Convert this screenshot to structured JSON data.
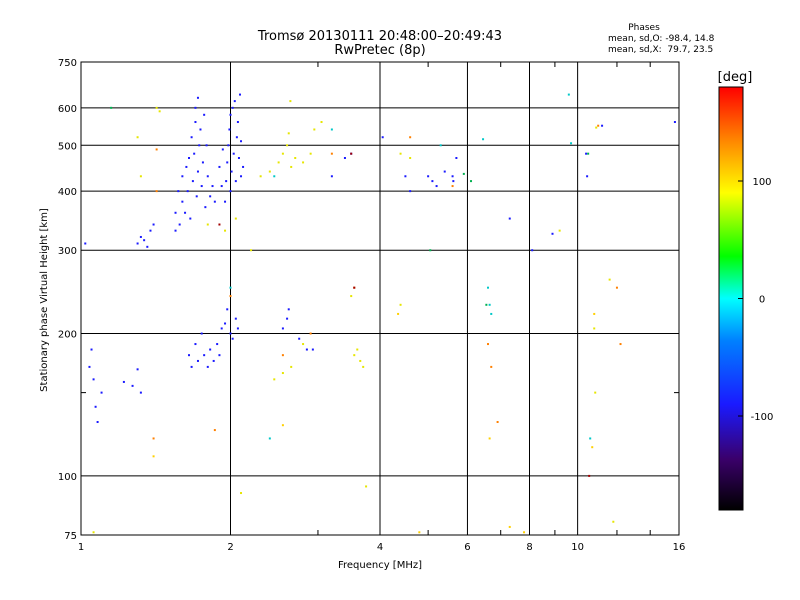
{
  "chart_data": {
    "type": "scatter",
    "title": "Tromsø 20130111 20:48:00–20:49:43",
    "subtitle": "RwPretec (8p)",
    "stats_header": "Phases",
    "stats_lines": [
      "mean, sd,O: -98.4, 14.8",
      "mean, sd,X:  79.7, 23.5"
    ],
    "xlabel": "Frequency [MHz]",
    "ylabel": "Stationary phase Virtual Height [km]",
    "x_scale": "log",
    "y_scale": "log",
    "xlim": [
      1,
      16
    ],
    "ylim": [
      75,
      750
    ],
    "x_ticks": [
      1,
      2,
      4,
      6,
      8,
      10,
      16
    ],
    "x_tick_labels": [
      "1",
      "2",
      "4",
      "6",
      "8",
      "10",
      "16"
    ],
    "x_minor_ticks": [
      3,
      5,
      7,
      9,
      12,
      14
    ],
    "y_ticks": [
      75,
      100,
      200,
      300,
      400,
      500,
      600,
      750
    ],
    "y_tick_labels": [
      "75",
      "100",
      "200",
      "300",
      "400",
      "500",
      "600",
      "750"
    ],
    "y_minor_ticks": [
      150
    ],
    "grid": true,
    "colorbar": {
      "label": "[deg]",
      "range": [
        -180,
        180
      ],
      "ticks": [
        100,
        0,
        -100
      ],
      "tick_labels": [
        "100",
        "0",
        "-100"
      ]
    },
    "series": [
      {
        "points": [
          [
            1.55,
            330
          ],
          [
            1.55,
            360
          ],
          [
            1.57,
            400
          ],
          [
            1.58,
            340
          ],
          [
            1.6,
            380
          ],
          [
            1.6,
            430
          ],
          [
            1.62,
            360
          ],
          [
            1.63,
            450
          ],
          [
            1.64,
            400
          ],
          [
            1.65,
            470
          ],
          [
            1.66,
            350
          ],
          [
            1.67,
            520
          ],
          [
            1.68,
            420
          ],
          [
            1.69,
            480
          ],
          [
            1.7,
            560
          ],
          [
            1.7,
            600
          ],
          [
            1.71,
            390
          ],
          [
            1.72,
            440
          ],
          [
            1.72,
            630
          ],
          [
            1.73,
            500
          ],
          [
            1.74,
            540
          ],
          [
            1.75,
            410
          ],
          [
            1.76,
            460
          ],
          [
            1.77,
            580
          ],
          [
            1.78,
            370
          ],
          [
            1.79,
            500
          ],
          [
            1.8,
            430
          ],
          [
            1.82,
            390
          ],
          [
            1.84,
            410
          ],
          [
            1.86,
            380
          ],
          [
            1.95,
            380
          ],
          [
            1.96,
            420
          ],
          [
            1.97,
            460
          ],
          [
            1.98,
            500
          ],
          [
            1.99,
            540
          ],
          [
            2.0,
            400
          ],
          [
            2.0,
            580
          ],
          [
            2.01,
            440
          ],
          [
            2.02,
            600
          ],
          [
            2.03,
            480
          ],
          [
            2.04,
            620
          ],
          [
            2.05,
            420
          ],
          [
            2.06,
            520
          ],
          [
            2.07,
            560
          ],
          [
            2.08,
            470
          ],
          [
            2.09,
            640
          ],
          [
            2.1,
            430
          ],
          [
            2.1,
            510
          ],
          [
            2.12,
            450
          ],
          [
            1.93,
            490
          ],
          [
            1.92,
            410
          ],
          [
            1.9,
            450
          ],
          [
            1.65,
            180
          ],
          [
            1.67,
            170
          ],
          [
            1.7,
            190
          ],
          [
            1.72,
            175
          ],
          [
            1.75,
            200
          ],
          [
            1.77,
            180
          ],
          [
            1.8,
            170
          ],
          [
            1.82,
            185
          ],
          [
            1.85,
            175
          ],
          [
            1.88,
            190
          ],
          [
            1.9,
            180
          ],
          [
            1.92,
            205
          ],
          [
            1.95,
            210
          ],
          [
            1.97,
            225
          ],
          [
            2.0,
            200
          ],
          [
            2.02,
            195
          ],
          [
            2.05,
            215
          ],
          [
            2.07,
            205
          ],
          [
            1.02,
            310
          ],
          [
            1.05,
            185
          ],
          [
            1.06,
            160
          ],
          [
            1.07,
            140
          ],
          [
            1.08,
            130
          ],
          [
            1.1,
            150
          ],
          [
            1.04,
            170
          ],
          [
            1.3,
            310
          ],
          [
            1.32,
            320
          ],
          [
            1.34,
            315
          ],
          [
            1.36,
            305
          ],
          [
            1.38,
            330
          ],
          [
            1.4,
            340
          ],
          [
            1.22,
            158
          ],
          [
            1.27,
            155
          ],
          [
            1.3,
            168
          ],
          [
            1.32,
            150
          ],
          [
            2.55,
            205
          ],
          [
            2.6,
            215
          ],
          [
            2.62,
            225
          ],
          [
            2.75,
            195
          ],
          [
            2.85,
            185
          ],
          [
            2.93,
            185
          ],
          [
            3.2,
            430
          ],
          [
            3.4,
            470
          ],
          [
            3.5,
            480
          ],
          [
            4.05,
            520
          ],
          [
            4.5,
            430
          ],
          [
            4.6,
            400
          ],
          [
            5.0,
            430
          ],
          [
            5.1,
            420
          ],
          [
            5.2,
            410
          ],
          [
            5.4,
            440
          ],
          [
            5.6,
            430
          ],
          [
            5.62,
            420
          ],
          [
            5.7,
            470
          ],
          [
            7.3,
            350
          ],
          [
            8.1,
            300
          ],
          [
            8.9,
            325
          ],
          [
            10.4,
            480
          ],
          [
            10.45,
            430
          ],
          [
            11.2,
            550
          ],
          [
            15.7,
            560
          ]
        ]
      },
      {
        "points": [
          [
            1.95,
            330
          ],
          [
            2.05,
            350
          ],
          [
            2.2,
            300
          ],
          [
            2.3,
            430
          ],
          [
            2.4,
            440
          ],
          [
            2.5,
            460
          ],
          [
            2.55,
            480
          ],
          [
            2.6,
            500
          ],
          [
            2.62,
            530
          ],
          [
            2.64,
            620
          ],
          [
            2.65,
            450
          ],
          [
            2.7,
            470
          ],
          [
            2.8,
            460
          ],
          [
            2.9,
            480
          ],
          [
            2.95,
            540
          ],
          [
            3.05,
            560
          ],
          [
            1.3,
            520
          ],
          [
            1.32,
            430
          ],
          [
            1.42,
            600
          ],
          [
            1.44,
            590
          ],
          [
            4.4,
            480
          ],
          [
            4.6,
            470
          ],
          [
            3.5,
            240
          ],
          [
            3.55,
            180
          ],
          [
            3.6,
            185
          ],
          [
            3.65,
            175
          ],
          [
            3.7,
            170
          ],
          [
            2.45,
            160
          ],
          [
            2.55,
            165
          ],
          [
            2.65,
            170
          ],
          [
            2.8,
            190
          ],
          [
            2.1,
            92
          ],
          [
            3.75,
            95
          ],
          [
            1.8,
            340
          ],
          [
            4.4,
            230
          ],
          [
            9.2,
            330
          ],
          [
            10.8,
            205
          ],
          [
            10.85,
            150
          ],
          [
            10.9,
            545
          ],
          [
            11.6,
            260
          ],
          [
            11.8,
            80
          ],
          [
            1.06,
            76
          ]
        ]
      },
      {
        "points": [
          [
            1.4,
            120
          ],
          [
            1.42,
            400
          ],
          [
            1.42,
            490
          ],
          [
            2.0,
            240
          ],
          [
            1.86,
            125
          ],
          [
            2.55,
            180
          ],
          [
            2.9,
            200
          ],
          [
            3.2,
            480
          ],
          [
            3.55,
            250
          ],
          [
            4.6,
            520
          ],
          [
            5.6,
            410
          ],
          [
            6.6,
            190
          ],
          [
            6.7,
            170
          ],
          [
            6.9,
            130
          ],
          [
            11.0,
            550
          ],
          [
            12.0,
            250
          ],
          [
            12.2,
            190
          ]
        ]
      },
      {
        "points": [
          [
            2.0,
            250
          ],
          [
            2.45,
            430
          ],
          [
            3.2,
            540
          ],
          [
            5.3,
            500
          ],
          [
            6.45,
            515
          ],
          [
            6.6,
            250
          ],
          [
            6.65,
            230
          ],
          [
            6.7,
            220
          ],
          [
            9.6,
            640
          ],
          [
            9.7,
            505
          ],
          [
            10.6,
            120
          ],
          [
            2.4,
            120
          ]
        ]
      },
      {
        "points": [
          [
            5.9,
            435
          ],
          [
            6.1,
            420
          ],
          [
            5.05,
            300
          ],
          [
            6.55,
            230
          ],
          [
            10.5,
            480
          ],
          [
            1.15,
            600
          ]
        ]
      },
      {
        "points": [
          [
            3.5,
            480
          ],
          [
            10.55,
            100
          ],
          [
            1.9,
            340
          ],
          [
            3.55,
            250
          ]
        ]
      },
      {
        "points": [
          [
            1.4,
            110
          ],
          [
            2.55,
            128
          ],
          [
            4.35,
            220
          ],
          [
            4.8,
            76
          ],
          [
            7.3,
            78
          ],
          [
            7.8,
            76
          ],
          [
            10.7,
            115
          ],
          [
            10.8,
            220
          ],
          [
            6.65,
            120
          ]
        ]
      }
    ]
  }
}
